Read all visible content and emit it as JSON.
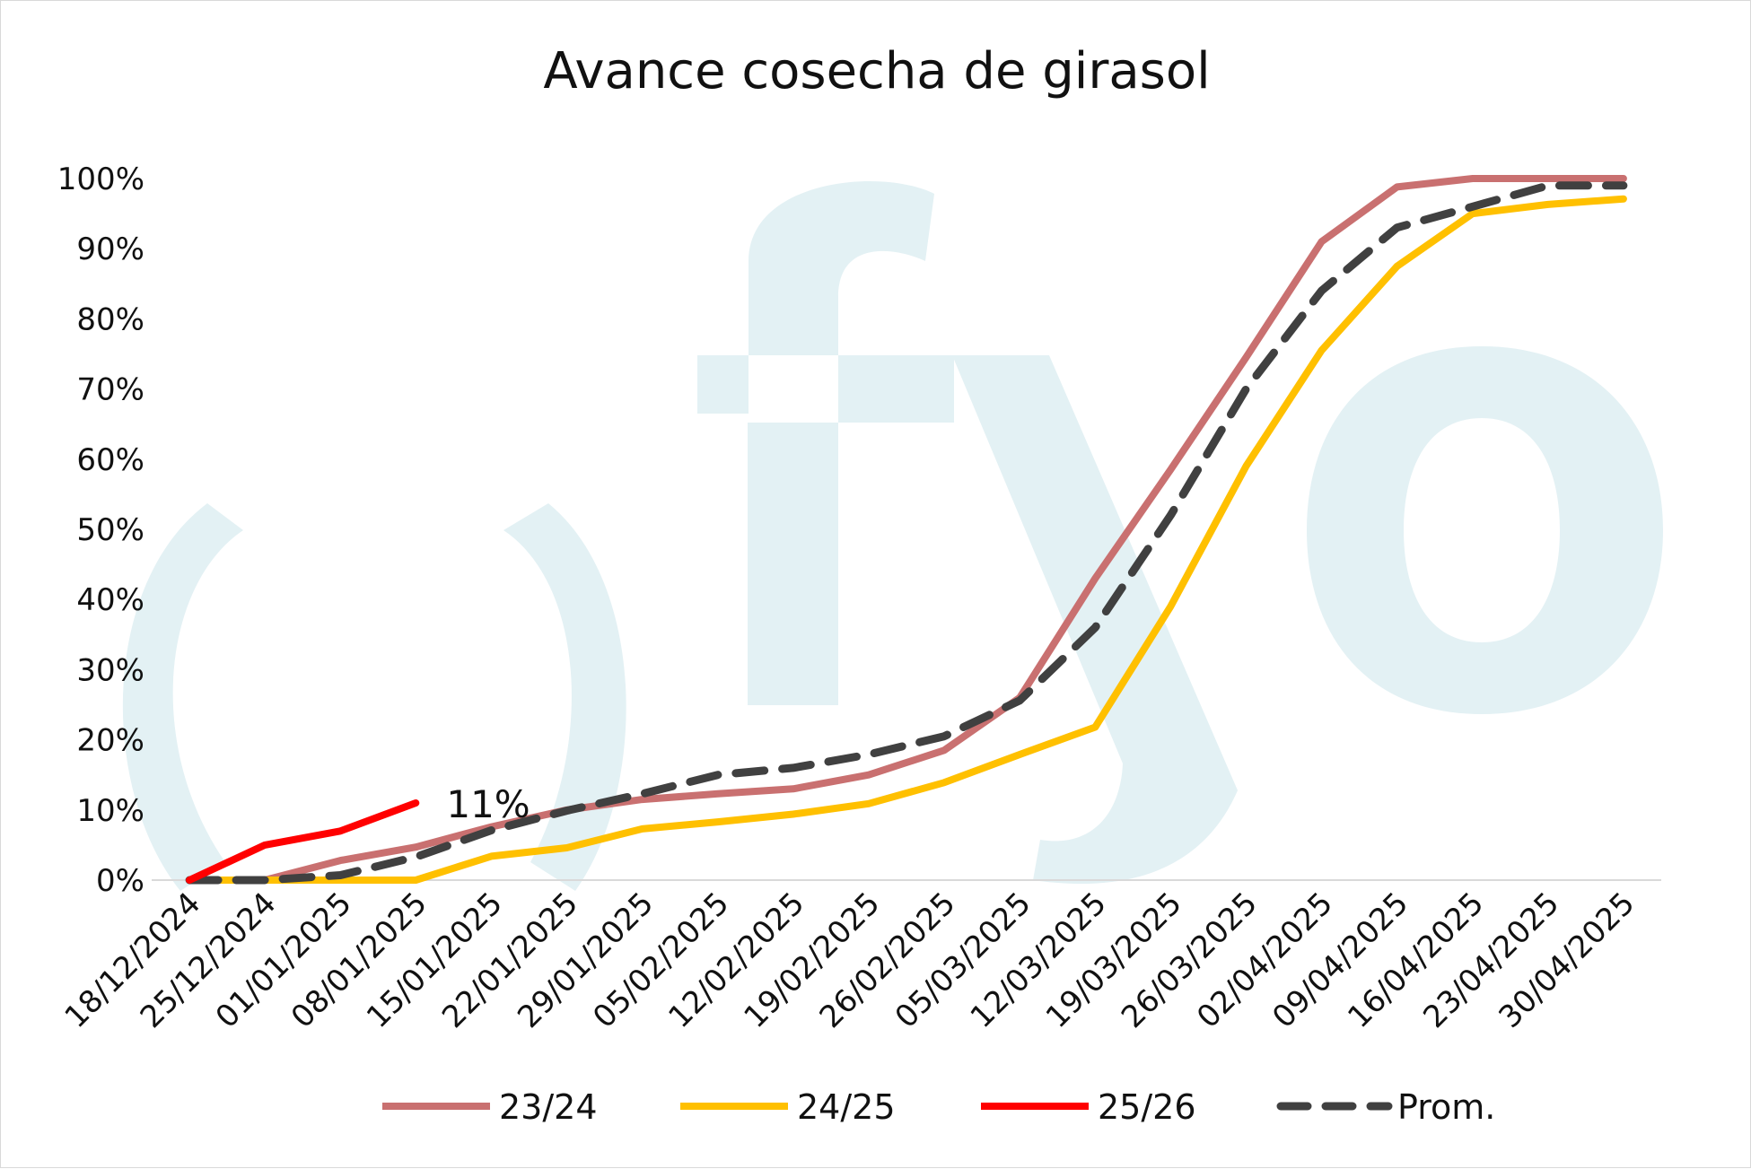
{
  "chart_data": {
    "type": "line",
    "title": "Avance cosecha de girasol",
    "xlabel": "",
    "ylabel": "",
    "categories": [
      "18/12/2024",
      "25/12/2024",
      "01/01/2025",
      "08/01/2025",
      "15/01/2025",
      "22/01/2025",
      "29/01/2025",
      "05/02/2025",
      "12/02/2025",
      "19/02/2025",
      "26/02/2025",
      "05/03/2025",
      "12/03/2025",
      "19/03/2025",
      "26/03/2025",
      "02/04/2025",
      "09/04/2025",
      "16/04/2025",
      "23/04/2025",
      "30/04/2025"
    ],
    "y_ticks": [
      "0%",
      "10%",
      "20%",
      "30%",
      "40%",
      "50%",
      "60%",
      "70%",
      "80%",
      "90%",
      "100%"
    ],
    "ylim": [
      0,
      100
    ],
    "grid": false,
    "legend_position": "bottom",
    "series": [
      {
        "name": "23/24",
        "color": "#c97070",
        "dashed": false,
        "values": [
          0,
          0,
          2.8,
          4.7,
          7.6,
          10,
          11.5,
          12.3,
          13,
          15,
          18.5,
          26,
          43,
          58.5,
          74.5,
          91,
          98.8,
          100,
          100,
          100
        ]
      },
      {
        "name": "24/25",
        "color": "#ffc000",
        "dashed": false,
        "values": [
          0,
          0,
          0,
          0,
          3.4,
          4.6,
          7.3,
          8.3,
          9.4,
          10.9,
          13.9,
          17.9,
          21.8,
          39,
          59,
          75.5,
          87.5,
          95,
          96.3,
          97.1
        ]
      },
      {
        "name": "25/26",
        "color": "#ff0000",
        "dashed": false,
        "values": [
          0,
          5,
          7,
          11,
          null,
          null,
          null,
          null,
          null,
          null,
          null,
          null,
          null,
          null,
          null,
          null,
          null,
          null,
          null,
          null
        ]
      },
      {
        "name": "Prom.",
        "color": "#404040",
        "dashed": true,
        "values": [
          0,
          0,
          0.7,
          3.3,
          7.1,
          9.9,
          12.3,
          15,
          16,
          17.9,
          20.5,
          25.6,
          36,
          52,
          70,
          84,
          93,
          96,
          99,
          99
        ]
      }
    ],
    "annotations": [
      {
        "text": "11%",
        "series": "25/26",
        "category": "08/01/2025"
      }
    ]
  },
  "watermark": {
    "text": "fyo",
    "color": "#e3f1f4"
  }
}
